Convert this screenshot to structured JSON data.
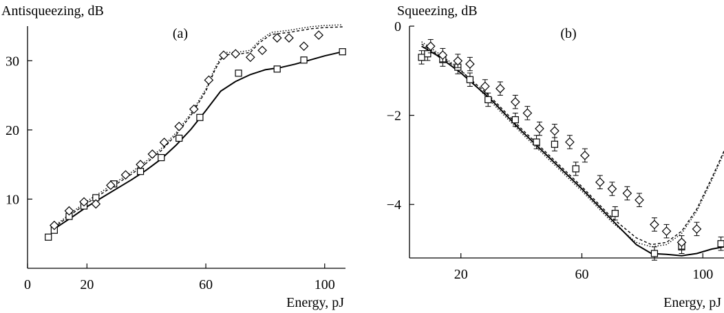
{
  "chart_data": [
    {
      "type": "scatter",
      "panel_label": "(a)",
      "ylabel": "Antisqueezing, dB",
      "xlabel": "Energy, pJ",
      "xlim": [
        0,
        107
      ],
      "ylim": [
        0,
        35
      ],
      "xticks": [
        0,
        20,
        60,
        100
      ],
      "yticks": [
        10,
        20,
        30
      ],
      "series": [
        {
          "marker": "square",
          "line": "none",
          "x": [
            7,
            9,
            14,
            19,
            23,
            29,
            38,
            45,
            51,
            58,
            71,
            84,
            93,
            106
          ],
          "y": [
            4.5,
            5.5,
            7.5,
            9.0,
            10.2,
            12.2,
            14.0,
            16.0,
            18.8,
            21.8,
            28.2,
            28.8,
            30.1,
            31.3
          ]
        },
        {
          "marker": "diamond",
          "line": "none",
          "x": [
            9,
            14,
            19,
            23,
            28,
            33,
            38,
            42,
            46,
            51,
            56,
            61,
            66,
            70,
            75,
            79,
            84,
            88,
            93,
            98
          ],
          "y": [
            6.2,
            8.3,
            9.6,
            9.3,
            12.0,
            13.5,
            15.0,
            16.5,
            18.2,
            20.5,
            23.0,
            27.2,
            30.8,
            31.0,
            30.5,
            31.5,
            33.3,
            33.3,
            32.1,
            33.7
          ]
        },
        {
          "marker": "none",
          "line": "solid",
          "x": [
            9,
            15,
            20,
            25,
            30,
            35,
            40,
            45,
            50,
            55,
            60,
            65,
            70,
            75,
            80,
            85,
            90,
            95,
            100,
            106
          ],
          "y": [
            5.7,
            7.4,
            8.9,
            10.2,
            11.5,
            12.8,
            14.2,
            15.8,
            17.8,
            20.1,
            22.8,
            25.6,
            27.0,
            28.0,
            28.7,
            29.0,
            29.5,
            30.1,
            30.7,
            31.3
          ]
        },
        {
          "marker": "none",
          "line": "dashed",
          "x": [
            9,
            15,
            20,
            25,
            30,
            35,
            40,
            45,
            50,
            55,
            60,
            63,
            66,
            70,
            75,
            78,
            82,
            88,
            95,
            100,
            106
          ],
          "y": [
            5.9,
            7.9,
            9.4,
            10.8,
            12.2,
            13.6,
            15.2,
            17.0,
            19.3,
            22.1,
            25.6,
            28.6,
            30.9,
            30.9,
            31.2,
            32.6,
            33.8,
            34.1,
            34.6,
            34.8,
            34.9
          ]
        },
        {
          "marker": "none",
          "line": "dotted",
          "x": [
            9,
            15,
            20,
            25,
            30,
            35,
            40,
            45,
            50,
            55,
            60,
            63,
            66,
            70,
            75,
            78,
            82,
            88,
            95,
            100,
            106
          ],
          "y": [
            6.1,
            8.1,
            9.7,
            11.1,
            12.5,
            13.9,
            15.5,
            17.3,
            19.6,
            22.4,
            25.9,
            28.9,
            31.2,
            31.2,
            31.5,
            32.9,
            34.1,
            34.4,
            34.9,
            35.1,
            35.2
          ]
        }
      ]
    },
    {
      "type": "scatter",
      "panel_label": "(b)",
      "ylabel": "Squeezing, dB",
      "xlabel": "Energy, pJ",
      "xlim": [
        3,
        107
      ],
      "ylim": [
        -5.2,
        0
      ],
      "xticks": [
        20,
        60,
        100
      ],
      "yticks": [
        0,
        -2,
        -4
      ],
      "ytick_labels": [
        "0",
        "−2",
        "−4"
      ],
      "series": [
        {
          "marker": "square",
          "line": "none",
          "error_bars": true,
          "x": [
            7,
            9,
            14,
            19,
            23,
            29,
            38,
            45,
            51,
            58,
            71,
            84,
            93,
            106
          ],
          "y": [
            -0.7,
            -0.62,
            -0.75,
            -0.92,
            -1.2,
            -1.65,
            -2.1,
            -2.6,
            -2.65,
            -3.2,
            -4.2,
            -5.1,
            -4.95,
            -4.88
          ],
          "err": [
            0.15,
            0.15,
            0.15,
            0.15,
            0.15,
            0.15,
            0.15,
            0.15,
            0.15,
            0.15,
            0.15,
            0.15,
            0.15,
            0.15
          ]
        },
        {
          "marker": "diamond",
          "line": "none",
          "error_bars": true,
          "x": [
            10,
            14,
            19,
            23,
            28,
            33,
            38,
            42,
            46,
            51,
            56,
            61,
            66,
            70,
            75,
            79,
            84,
            88,
            93,
            98
          ],
          "y": [
            -0.45,
            -0.65,
            -0.78,
            -0.85,
            -1.35,
            -1.4,
            -1.7,
            -1.95,
            -2.3,
            -2.35,
            -2.6,
            -2.9,
            -3.5,
            -3.65,
            -3.75,
            -3.9,
            -4.45,
            -4.6,
            -4.85,
            -4.55
          ],
          "err": [
            0.15,
            0.15,
            0.15,
            0.15,
            0.15,
            0.15,
            0.15,
            0.15,
            0.15,
            0.15,
            0.15,
            0.15,
            0.15,
            0.15,
            0.15,
            0.15,
            0.15,
            0.15,
            0.15,
            0.15
          ]
        },
        {
          "marker": "none",
          "line": "solid",
          "x": [
            7,
            12,
            20,
            30,
            40,
            50,
            60,
            70,
            78,
            83,
            88,
            93,
            98,
            103,
            107
          ],
          "y": [
            -0.45,
            -0.65,
            -1.05,
            -1.65,
            -2.35,
            -3.0,
            -3.65,
            -4.35,
            -4.9,
            -5.1,
            -5.12,
            -5.15,
            -5.1,
            -5.0,
            -4.95
          ]
        },
        {
          "marker": "none",
          "line": "dashed",
          "x": [
            7,
            12,
            20,
            30,
            40,
            50,
            60,
            70,
            78,
            83,
            88,
            93,
            98,
            103,
            107
          ],
          "y": [
            -0.4,
            -0.62,
            -1.0,
            -1.6,
            -2.3,
            -2.95,
            -3.6,
            -4.3,
            -4.75,
            -4.9,
            -4.85,
            -4.6,
            -4.1,
            -3.4,
            -2.8
          ]
        },
        {
          "marker": "none",
          "line": "dotted",
          "x": [
            7,
            12,
            20,
            30,
            40,
            50,
            60,
            70,
            78,
            83,
            88,
            93,
            98,
            103,
            107
          ],
          "y": [
            -0.35,
            -0.58,
            -0.98,
            -1.7,
            -2.4,
            -3.05,
            -3.7,
            -4.4,
            -4.85,
            -4.95,
            -4.9,
            -4.65,
            -4.15,
            -3.45,
            -2.85
          ]
        }
      ]
    }
  ]
}
